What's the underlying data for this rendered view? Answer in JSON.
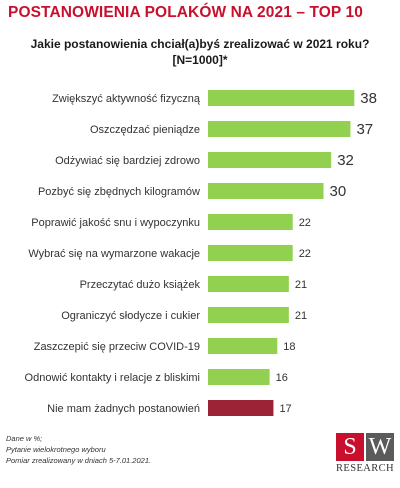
{
  "header": {
    "title": "POSTANOWIENIA POLAKÓW NA 2021 – TOP 10"
  },
  "question": {
    "line1": "Jakie postanowienia chciał(a)byś zrealizować w 2021 roku?",
    "line2": "[N=1000]*"
  },
  "chart_data": {
    "type": "bar",
    "orientation": "horizontal",
    "title": "",
    "xlabel": "",
    "ylabel": "",
    "xlim": [
      0,
      40
    ],
    "grid": false,
    "legend": "none",
    "categories": [
      "Zwiększyć aktywność fizyczną",
      "Oszczędzać pieniądze",
      "Odżywiać się bardziej zdrowo",
      "Pozbyć się zbędnych kilogramów",
      "Poprawić jakość snu i wypoczynku",
      "Wybrać się na wymarzone wakacje",
      "Przeczytać dużo książek",
      "Ograniczyć słodycze i cukier",
      "Zaszczepić się przeciw COVID-19",
      "Odnowić kontakty i relacje z bliskimi",
      "Nie mam żadnych postanowień"
    ],
    "values": [
      38,
      37,
      32,
      30,
      22,
      22,
      21,
      21,
      18,
      16,
      17
    ],
    "colors": [
      "#92d050",
      "#92d050",
      "#92d050",
      "#92d050",
      "#92d050",
      "#92d050",
      "#92d050",
      "#92d050",
      "#92d050",
      "#92d050",
      "#9b2335"
    ]
  },
  "footnote": {
    "line1": "Dane w %;",
    "line2": "Pytanie wielokrotnego wyboru",
    "line3": "Pomiar zrealizowany w dniach 5-7.01.2021."
  },
  "logo": {
    "letter1": "S",
    "letter2": "W",
    "text": "RESEARCH"
  }
}
